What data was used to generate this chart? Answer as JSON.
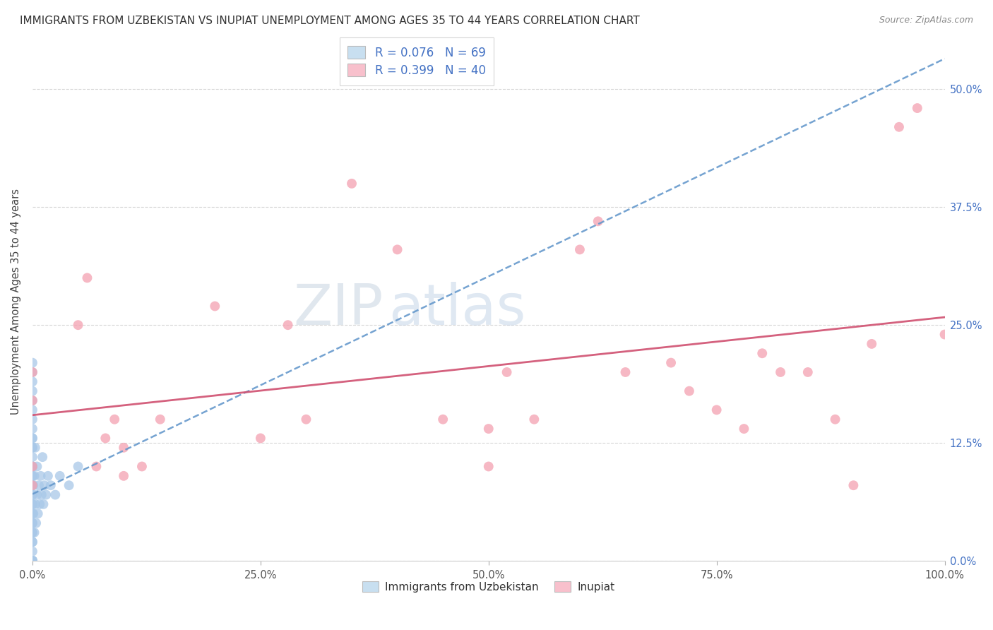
{
  "title": "IMMIGRANTS FROM UZBEKISTAN VS INUPIAT UNEMPLOYMENT AMONG AGES 35 TO 44 YEARS CORRELATION CHART",
  "source": "Source: ZipAtlas.com",
  "ylabel": "Unemployment Among Ages 35 to 44 years",
  "series1_label": "Immigrants from Uzbekistan",
  "series2_label": "Inupiat",
  "series1_R": 0.076,
  "series1_N": 69,
  "series2_R": 0.399,
  "series2_N": 40,
  "series1_color": "#a8c8e8",
  "series2_color": "#f4a0b0",
  "series1_line_color": "#6699cc",
  "series2_line_color": "#d05070",
  "legend_color1_face": "#c8dff0",
  "legend_color2_face": "#f8c0cc",
  "xlim": [
    0,
    1.0
  ],
  "ylim": [
    0,
    0.55
  ],
  "xtick_labels": [
    "0.0%",
    "25.0%",
    "50.0%",
    "75.0%",
    "100.0%"
  ],
  "xtick_vals": [
    0.0,
    0.25,
    0.5,
    0.75,
    1.0
  ],
  "ytick_labels": [
    "0.0%",
    "12.5%",
    "25.0%",
    "37.5%",
    "50.0%"
  ],
  "ytick_vals": [
    0.0,
    0.125,
    0.25,
    0.375,
    0.5
  ],
  "series1_x": [
    0.0,
    0.0,
    0.0,
    0.0,
    0.0,
    0.0,
    0.0,
    0.0,
    0.0,
    0.0,
    0.0,
    0.0,
    0.0,
    0.0,
    0.0,
    0.0,
    0.0,
    0.0,
    0.0,
    0.0,
    0.0,
    0.0,
    0.0,
    0.0,
    0.0,
    0.0,
    0.0,
    0.0,
    0.0,
    0.0,
    0.0,
    0.0,
    0.0,
    0.0,
    0.0,
    0.0,
    0.0,
    0.0,
    0.0,
    0.0,
    0.0,
    0.0,
    0.0,
    0.0,
    0.0,
    0.001,
    0.001,
    0.002,
    0.002,
    0.003,
    0.003,
    0.004,
    0.005,
    0.005,
    0.006,
    0.007,
    0.008,
    0.009,
    0.01,
    0.011,
    0.012,
    0.013,
    0.015,
    0.017,
    0.02,
    0.025,
    0.03,
    0.04,
    0.05
  ],
  "series1_y": [
    0.0,
    0.0,
    0.0,
    0.0,
    0.0,
    0.0,
    0.0,
    0.0,
    0.0,
    0.0,
    0.0,
    0.0,
    0.01,
    0.02,
    0.02,
    0.03,
    0.03,
    0.04,
    0.04,
    0.05,
    0.05,
    0.06,
    0.06,
    0.07,
    0.07,
    0.08,
    0.08,
    0.09,
    0.09,
    0.1,
    0.1,
    0.1,
    0.11,
    0.12,
    0.12,
    0.13,
    0.13,
    0.14,
    0.15,
    0.16,
    0.17,
    0.18,
    0.19,
    0.2,
    0.21,
    0.05,
    0.08,
    0.03,
    0.09,
    0.06,
    0.12,
    0.04,
    0.07,
    0.1,
    0.05,
    0.08,
    0.06,
    0.09,
    0.07,
    0.11,
    0.06,
    0.08,
    0.07,
    0.09,
    0.08,
    0.07,
    0.09,
    0.08,
    0.1
  ],
  "series2_x": [
    0.0,
    0.0,
    0.0,
    0.0,
    0.05,
    0.06,
    0.07,
    0.08,
    0.09,
    0.1,
    0.1,
    0.12,
    0.14,
    0.2,
    0.25,
    0.28,
    0.3,
    0.35,
    0.4,
    0.45,
    0.5,
    0.5,
    0.52,
    0.55,
    0.6,
    0.62,
    0.65,
    0.7,
    0.72,
    0.75,
    0.78,
    0.8,
    0.82,
    0.85,
    0.88,
    0.9,
    0.92,
    0.95,
    0.97,
    1.0
  ],
  "series2_y": [
    0.2,
    0.17,
    0.1,
    0.08,
    0.25,
    0.3,
    0.1,
    0.13,
    0.15,
    0.12,
    0.09,
    0.1,
    0.15,
    0.27,
    0.13,
    0.25,
    0.15,
    0.4,
    0.33,
    0.15,
    0.1,
    0.14,
    0.2,
    0.15,
    0.33,
    0.36,
    0.2,
    0.21,
    0.18,
    0.16,
    0.14,
    0.22,
    0.2,
    0.2,
    0.15,
    0.08,
    0.23,
    0.46,
    0.48,
    0.24
  ]
}
